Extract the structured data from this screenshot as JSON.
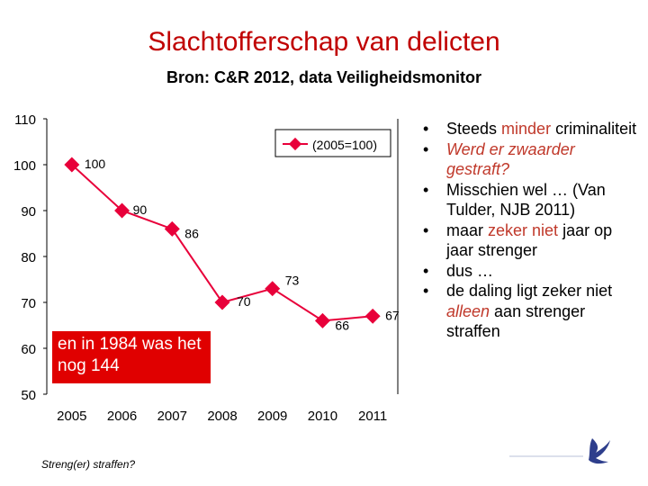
{
  "slide": {
    "title": "Slachtofferschap van delicten",
    "subtitle": "Bron: C&R 2012, data Veiligheidsmonitor",
    "callout": "en in 1984 was het nog 144",
    "footer": "Streng(er) straffen?"
  },
  "bullets": [
    {
      "parts": [
        {
          "text": "Steeds "
        },
        {
          "text": "minder",
          "style": "red"
        },
        {
          "text": " criminaliteit"
        }
      ]
    },
    {
      "parts": [
        {
          "text": "Werd er zwaarder gestraft?",
          "style": "red-italic"
        }
      ]
    },
    {
      "parts": [
        {
          "text": "Misschien wel … (Van Tulder, NJB 2011)"
        }
      ]
    },
    {
      "parts": [
        {
          "text": "maar "
        },
        {
          "text": "zeker niet",
          "style": "red"
        },
        {
          "text": " jaar op jaar strenger"
        }
      ]
    },
    {
      "parts": [
        {
          "text": "dus …"
        }
      ]
    },
    {
      "parts": [
        {
          "text": "de daling ligt zeker niet "
        },
        {
          "text": "alleen",
          "style": "red-italic"
        },
        {
          "text": " aan strenger straffen"
        }
      ]
    }
  ],
  "chart_data": {
    "type": "line",
    "title": "",
    "xlabel": "",
    "ylabel": "",
    "ylim": [
      50,
      110
    ],
    "yticks": [
      50,
      60,
      70,
      80,
      90,
      100,
      110
    ],
    "grid": false,
    "legend_position": "top-right",
    "x": [
      "2005",
      "2006",
      "2007",
      "2008",
      "2009",
      "2010",
      "2011"
    ],
    "series": [
      {
        "name": "(2005=100)",
        "values": [
          100,
          90,
          86,
          70,
          73,
          66,
          67
        ],
        "color": "#e8003a"
      }
    ],
    "data_labels": [
      "100",
      "90",
      "86",
      "70",
      "73",
      "66",
      "67"
    ]
  }
}
